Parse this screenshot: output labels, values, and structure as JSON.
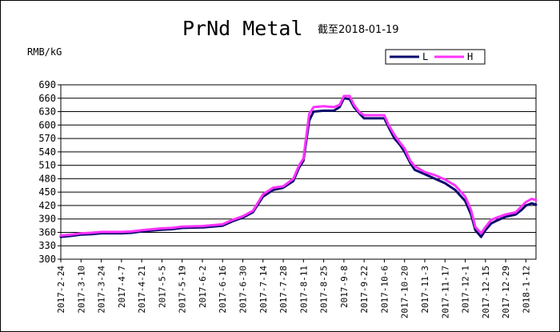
{
  "chart_data": {
    "type": "line",
    "title": "PrNd Metal",
    "subtitle": "截至2018-01-19",
    "ylabel": "RMB/kG",
    "ylim": [
      300,
      690
    ],
    "yticks": [
      300,
      330,
      360,
      390,
      420,
      450,
      480,
      510,
      540,
      570,
      600,
      630,
      660,
      690
    ],
    "xlim": [
      "2017-02-24",
      "2018-01-19"
    ],
    "xticks": [
      "2017-2-24",
      "2017-3-10",
      "2017-3-24",
      "2017-4-7",
      "2017-4-21",
      "2017-5-5",
      "2017-5-19",
      "2017-6-2",
      "2017-6-16",
      "2017-6-30",
      "2017-7-14",
      "2017-7-28",
      "2017-8-11",
      "2017-8-25",
      "2017-9-8",
      "2017-9-22",
      "2017-10-6",
      "2017-10-20",
      "2017-11-3",
      "2017-11-17",
      "2017-12-1",
      "2017-12-15",
      "2017-12-29",
      "2018-1-12"
    ],
    "grid": true,
    "legend_position": "top-right",
    "series": [
      {
        "name": "L",
        "color": "#0a0a6e",
        "x": [
          "2017-02-24",
          "2017-03-03",
          "2017-03-10",
          "2017-03-17",
          "2017-03-24",
          "2017-04-07",
          "2017-04-14",
          "2017-04-21",
          "2017-05-05",
          "2017-05-12",
          "2017-05-19",
          "2017-06-02",
          "2017-06-09",
          "2017-06-16",
          "2017-06-23",
          "2017-06-30",
          "2017-07-07",
          "2017-07-14",
          "2017-07-21",
          "2017-07-28",
          "2017-08-04",
          "2017-08-08",
          "2017-08-11",
          "2017-08-15",
          "2017-08-18",
          "2017-08-25",
          "2017-09-01",
          "2017-09-05",
          "2017-09-08",
          "2017-09-12",
          "2017-09-15",
          "2017-09-19",
          "2017-09-22",
          "2017-09-29",
          "2017-10-06",
          "2017-10-09",
          "2017-10-13",
          "2017-10-17",
          "2017-10-20",
          "2017-10-24",
          "2017-10-27",
          "2017-11-03",
          "2017-11-10",
          "2017-11-17",
          "2017-11-24",
          "2017-12-01",
          "2017-12-05",
          "2017-12-08",
          "2017-12-12",
          "2017-12-15",
          "2017-12-19",
          "2017-12-22",
          "2017-12-29",
          "2018-01-05",
          "2018-01-09",
          "2018-01-12",
          "2018-01-16",
          "2018-01-19"
        ],
        "y": [
          350,
          352,
          355,
          356,
          358,
          358,
          359,
          362,
          366,
          367,
          370,
          371,
          373,
          375,
          385,
          393,
          405,
          440,
          455,
          460,
          475,
          505,
          520,
          610,
          630,
          632,
          632,
          640,
          660,
          658,
          640,
          625,
          615,
          615,
          615,
          595,
          570,
          555,
          540,
          515,
          500,
          490,
          480,
          470,
          455,
          430,
          400,
          365,
          350,
          365,
          380,
          385,
          395,
          400,
          410,
          420,
          425,
          422
        ]
      },
      {
        "name": "H",
        "color": "#ff33ff",
        "x": [
          "2017-02-24",
          "2017-03-03",
          "2017-03-10",
          "2017-03-17",
          "2017-03-24",
          "2017-04-07",
          "2017-04-14",
          "2017-04-21",
          "2017-05-05",
          "2017-05-12",
          "2017-05-19",
          "2017-06-02",
          "2017-06-09",
          "2017-06-16",
          "2017-06-23",
          "2017-06-30",
          "2017-07-07",
          "2017-07-14",
          "2017-07-21",
          "2017-07-28",
          "2017-08-04",
          "2017-08-08",
          "2017-08-11",
          "2017-08-15",
          "2017-08-18",
          "2017-08-25",
          "2017-09-01",
          "2017-09-05",
          "2017-09-08",
          "2017-09-12",
          "2017-09-15",
          "2017-09-19",
          "2017-09-22",
          "2017-09-29",
          "2017-10-06",
          "2017-10-09",
          "2017-10-13",
          "2017-10-17",
          "2017-10-20",
          "2017-10-24",
          "2017-10-27",
          "2017-11-03",
          "2017-11-10",
          "2017-11-17",
          "2017-11-24",
          "2017-12-01",
          "2017-12-05",
          "2017-12-08",
          "2017-12-12",
          "2017-12-15",
          "2017-12-19",
          "2017-12-22",
          "2017-12-29",
          "2018-01-05",
          "2018-01-09",
          "2018-01-12",
          "2018-01-16",
          "2018-01-19"
        ],
        "y": [
          353,
          355,
          358,
          359,
          361,
          361,
          362,
          365,
          369,
          370,
          373,
          374,
          376,
          378,
          388,
          396,
          408,
          445,
          460,
          463,
          480,
          510,
          525,
          625,
          640,
          642,
          640,
          645,
          665,
          665,
          645,
          628,
          622,
          622,
          622,
          600,
          578,
          560,
          548,
          520,
          508,
          495,
          488,
          478,
          465,
          440,
          410,
          372,
          358,
          372,
          388,
          392,
          400,
          405,
          418,
          428,
          435,
          432
        ]
      }
    ]
  }
}
